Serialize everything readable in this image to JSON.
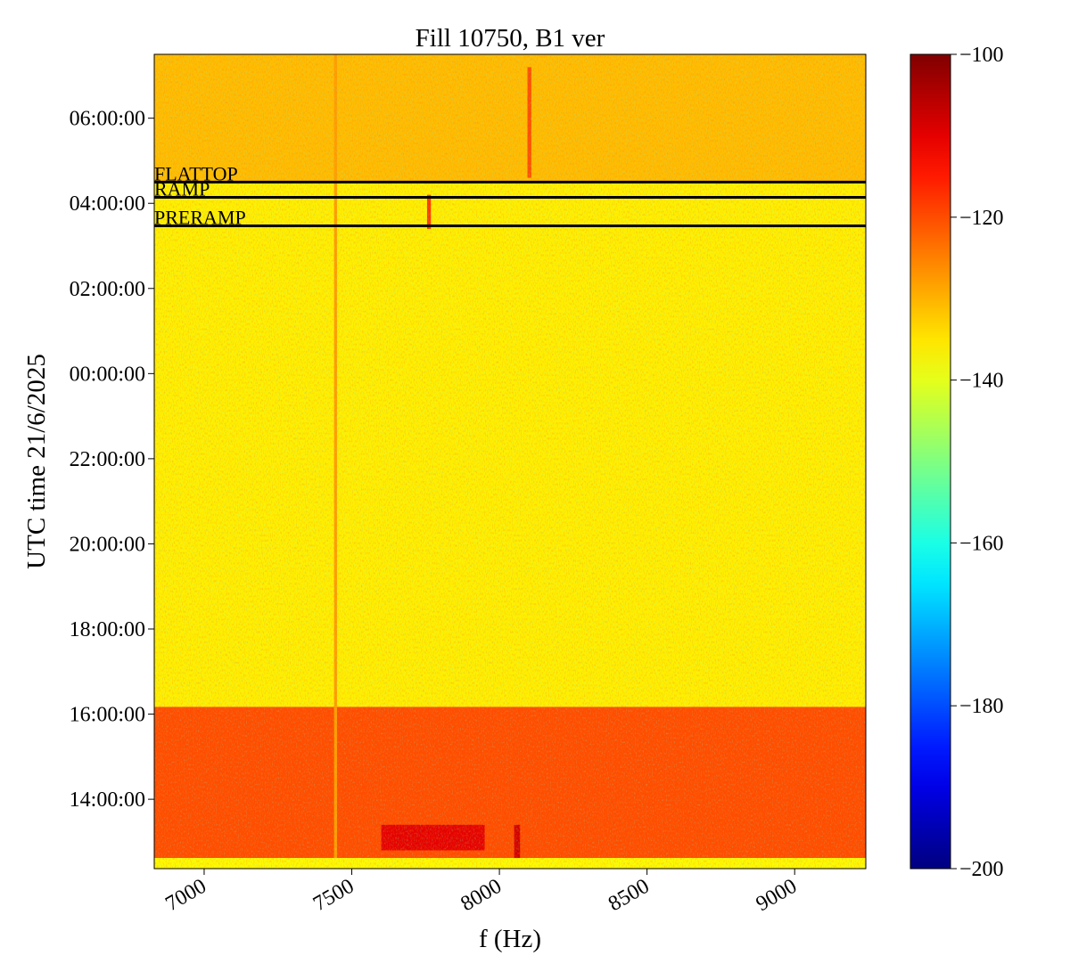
{
  "chart_data": {
    "type": "spectrogram",
    "title": "Fill 10750, B1 ver",
    "xlabel": "f (Hz)",
    "ylabel": "UTC time 21/6/2025",
    "xlim": [
      6831,
      9241
    ],
    "xticks": [
      7000,
      7500,
      8000,
      8500,
      9000
    ],
    "ylim": [
      -11.63,
      7.5
    ],
    "yticks": [
      {
        "value": -10,
        "label": "14:00:00"
      },
      {
        "value": -8,
        "label": "16:00:00"
      },
      {
        "value": -6,
        "label": "18:00:00"
      },
      {
        "value": -4,
        "label": "20:00:00"
      },
      {
        "value": -2,
        "label": "22:00:00"
      },
      {
        "value": 0,
        "label": "00:00:00"
      },
      {
        "value": 2,
        "label": "02:00:00"
      },
      {
        "value": 4,
        "label": "04:00:00"
      },
      {
        "value": 6,
        "label": "06:00:00"
      }
    ],
    "colormap": "jet",
    "clim": [
      -200,
      -100
    ],
    "cticks": [
      {
        "value": -200,
        "label": "−200"
      },
      {
        "value": -180,
        "label": "−180"
      },
      {
        "value": -160,
        "label": "−160"
      },
      {
        "value": -140,
        "label": "−140"
      },
      {
        "value": -120,
        "label": "−120"
      },
      {
        "value": -100,
        "label": "−100"
      }
    ],
    "regions": [
      {
        "x": [
          6831,
          9241
        ],
        "y": [
          4.5,
          7.5
        ],
        "level": -131
      },
      {
        "x": [
          6831,
          9241
        ],
        "y": [
          -7.83,
          4.5
        ],
        "level": -136
      },
      {
        "x": [
          6831,
          9241
        ],
        "y": [
          -11.38,
          -7.83
        ],
        "level": -120
      },
      {
        "x": [
          6831,
          9241
        ],
        "y": [
          -11.63,
          -11.38
        ],
        "level": -137
      },
      {
        "x": [
          7440,
          7450
        ],
        "y": [
          -11.38,
          7.5
        ],
        "level": -128
      },
      {
        "x": [
          7755,
          7768
        ],
        "y": [
          3.4,
          4.2
        ],
        "level": -118
      },
      {
        "x": [
          8095,
          8108
        ],
        "y": [
          4.6,
          7.2
        ],
        "level": -120
      },
      {
        "x": [
          7600,
          7950
        ],
        "y": [
          -11.2,
          -10.6
        ],
        "level": -110
      },
      {
        "x": [
          8050,
          8070
        ],
        "y": [
          -11.38,
          -10.6
        ],
        "level": -108
      }
    ],
    "annotations": [
      {
        "text": "FLATTOP",
        "y": 4.5
      },
      {
        "text": "RAMP",
        "y": 4.14
      },
      {
        "text": "PRERAMP",
        "y": 3.47
      }
    ]
  }
}
